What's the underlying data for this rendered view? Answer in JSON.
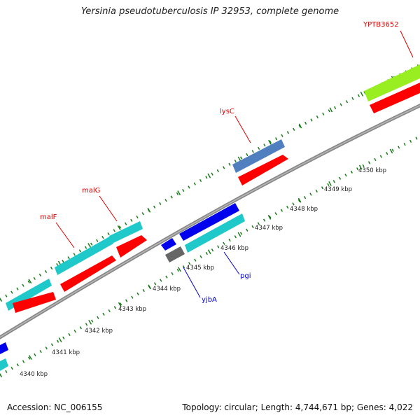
{
  "title": "Yersinia pseudotuberculosis IP 32953, complete genome",
  "footer": {
    "accession": "Accession: NC_006155",
    "summary": "Topology: circular; Length: 4,744,671 bp; Genes: 4,022"
  },
  "scale_labels": [
    "4340 kbp",
    "4341 kbp",
    "4342 kbp",
    "4343 kbp",
    "4344 kbp",
    "4345 kbp",
    "4346 kbp",
    "4347 kbp",
    "4348 kbp",
    "4349 kbp",
    "4350 kbp"
  ],
  "gene_labels": [
    {
      "name": "malF",
      "strand": "forward"
    },
    {
      "name": "malG",
      "strand": "forward"
    },
    {
      "name": "lysC",
      "strand": "forward"
    },
    {
      "name": "YPTB3652",
      "strand": "forward"
    },
    {
      "name": "pgi",
      "strand": "reverse"
    },
    {
      "name": "yjbA",
      "strand": "reverse"
    }
  ],
  "colors": {
    "forward_label": "#dd0000",
    "reverse_label": "#0000cc",
    "backbone": "#888888",
    "ticks": "#1a7a1a",
    "cds": "#ff0000",
    "cyan_feature": "#1fc9c9",
    "steelblue_feature": "#4f7fbf",
    "lime_feature": "#99ee22",
    "blue_feature": "#0000ee",
    "gray_feature": "#666666"
  }
}
